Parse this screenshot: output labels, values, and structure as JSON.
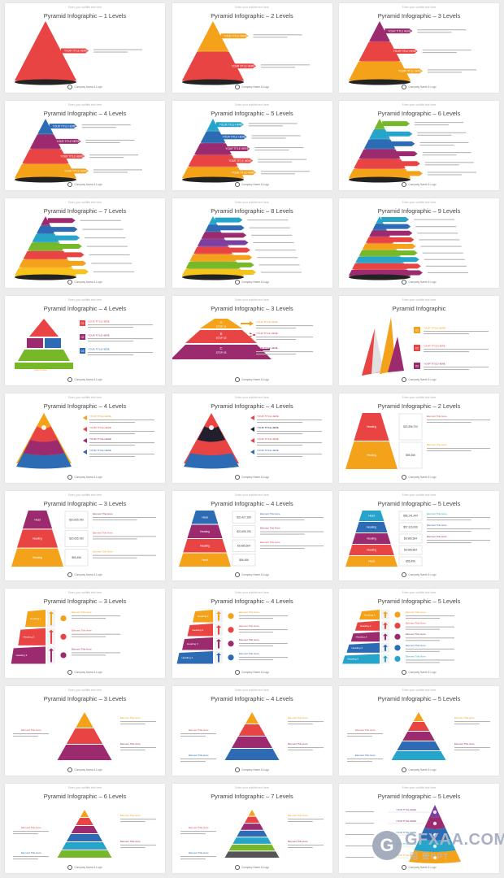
{
  "subtitle": "Enter your subtitle text here",
  "footer": "Company Name & Logo",
  "small_title": "YOUR TITLE HERE",
  "element_title": "Element Title Here",
  "body_text": "There are many variations of passages of lorem ipsum available.",
  "slides": [
    {
      "title": "Pyramid Infographic – 1 Levels",
      "type": "cone",
      "colors": [
        "#e94444"
      ]
    },
    {
      "title": "Pyramid Infographic – 2 Levels",
      "type": "cone",
      "colors": [
        "#f3a21a",
        "#e94444"
      ]
    },
    {
      "title": "Pyramid Infographic – 3 Levels",
      "type": "cone",
      "colors": [
        "#9b2a6e",
        "#e94444",
        "#f3a21a"
      ]
    },
    {
      "title": "Pyramid Infographic – 4 Levels",
      "type": "cone",
      "colors": [
        "#2d6cb5",
        "#9b2a6e",
        "#e94444",
        "#f3a21a"
      ]
    },
    {
      "title": "Pyramid Infographic – 5 Levels",
      "type": "cone",
      "colors": [
        "#27a4c9",
        "#2d6cb5",
        "#9b2a6e",
        "#e94444",
        "#f3a21a"
      ]
    },
    {
      "title": "Pyramid Infographic – 6 Levels",
      "type": "cone",
      "colors": [
        "#76b82a",
        "#27a4c9",
        "#2d6cb5",
        "#9b2a6e",
        "#e94444",
        "#f3a21a"
      ]
    },
    {
      "title": "Pyramid Infographic – 7 Levels",
      "type": "cone",
      "colors": [
        "#9b2a6e",
        "#2d6cb5",
        "#27a4c9",
        "#76b82a",
        "#e94444",
        "#f3a21a",
        "#f7c21a"
      ]
    },
    {
      "title": "Pyramid Infographic – 8 Levels",
      "type": "cone",
      "colors": [
        "#27a4c9",
        "#2d6cb5",
        "#9b2a6e",
        "#7a3fa0",
        "#e94444",
        "#f3a21a",
        "#76b82a",
        "#f7c21a"
      ]
    },
    {
      "title": "Pyramid Infographic – 9 Levels",
      "type": "cone",
      "colors": [
        "#27a4c9",
        "#2d6cb5",
        "#9b2a6e",
        "#e94444",
        "#f3a21a",
        "#76b82a",
        "#27a4c9",
        "#e94444",
        "#9b2a6e"
      ]
    },
    {
      "title": "Pyramid Infographic – 4 Levels",
      "type": "blocks",
      "colors": [
        "#e94444",
        "#9b2a6e",
        "#2d6cb5",
        "#76b82a"
      ],
      "labels": [
        "01",
        "02",
        "03"
      ],
      "extra": "Lorem Here"
    },
    {
      "title": "Pyramid Infographic – 3 Levels",
      "type": "steps",
      "colors": [
        "#f3a21a",
        "#e94444",
        "#9b2a6e"
      ],
      "labels": [
        "A",
        "STEP 01",
        "B",
        "STEP 02",
        "C",
        "STEP 03"
      ]
    },
    {
      "title": "Pyramid Infographic",
      "type": "shards",
      "colors": [
        "#f3a21a",
        "#e94444",
        "#9b2a6e"
      ],
      "labels": [
        "01",
        "02",
        "03"
      ]
    },
    {
      "title": "Pyramid Infographic – 4 Levels",
      "type": "round",
      "colors": [
        "#f3a21a",
        "#e94444",
        "#9b2a6e",
        "#2d6cb5"
      ]
    },
    {
      "title": "Pyramid Infographic – 4 Levels",
      "type": "round",
      "colors": [
        "#e94444",
        "#1f1f2e",
        "#e94444",
        "#2d6cb5"
      ]
    },
    {
      "title": "Pyramid Infographic – 2 Levels",
      "type": "value",
      "colors": [
        "#e94444",
        "#f3a21a"
      ],
      "labels": [
        "Heading",
        "Heading"
      ],
      "values": [
        "$20,556,700",
        "$55,456"
      ]
    },
    {
      "title": "Pyramid Infographic – 3 Levels",
      "type": "value",
      "colors": [
        "#9b2a6e",
        "#e94444",
        "#f3a21a"
      ],
      "labels": [
        "Head",
        "Heading",
        "Heading"
      ],
      "values": [
        "$20,655,780",
        "$20,655,780",
        "$55,456"
      ]
    },
    {
      "title": "Pyramid Infographic – 4 Levels",
      "type": "value",
      "colors": [
        "#2d6cb5",
        "#9b2a6e",
        "#e94444",
        "#f3a21a"
      ],
      "labels": [
        "Head",
        "Heading",
        "Heading",
        "Head"
      ],
      "values": [
        "$20,427,189",
        "$20,655,780",
        "$5,985,564",
        "$56,456"
      ]
    },
    {
      "title": "Pyramid Infographic – 5 Levels",
      "type": "value",
      "colors": [
        "#27a4c9",
        "#2d6cb5",
        "#9b2a6e",
        "#e94444",
        "#f3a21a"
      ],
      "labels": [
        "Head",
        "Heading",
        "Heading",
        "Heading",
        "Head"
      ],
      "values": [
        "$96,141,444",
        "$57,116,066",
        "$5,985,564",
        "$5,985,564",
        "$56,456"
      ]
    },
    {
      "title": "Pyramid Infographic – 3 Levels",
      "type": "bars",
      "colors": [
        "#f3a21a",
        "#e94444",
        "#9b2a6e"
      ],
      "labels": [
        "Heading 1",
        "Heading 2",
        "Heading 3"
      ]
    },
    {
      "title": "Pyramid Infographic – 4 Levels",
      "type": "bars",
      "colors": [
        "#f3a21a",
        "#e94444",
        "#9b2a6e",
        "#2d6cb5"
      ],
      "labels": [
        "Heading 1",
        "Heading 2",
        "Heading 3",
        "Heading 4"
      ]
    },
    {
      "title": "Pyramid Infographic – 5 Levels",
      "type": "bars",
      "colors": [
        "#f3a21a",
        "#e94444",
        "#9b2a6e",
        "#2d6cb5",
        "#27a4c9"
      ],
      "labels": [
        "Heading 1",
        "Heading 2",
        "Heading 3",
        "Heading 4",
        "Heading 5"
      ]
    },
    {
      "title": "Pyramid Infographic – 3 Levels",
      "type": "flat",
      "colors": [
        "#f3a21a",
        "#e94444",
        "#9b2a6e"
      ]
    },
    {
      "title": "Pyramid Infographic – 4 Levels",
      "type": "flat",
      "colors": [
        "#f3a21a",
        "#e94444",
        "#9b2a6e",
        "#2d6cb5"
      ]
    },
    {
      "title": "Pyramid Infographic – 5 Levels",
      "type": "flat",
      "colors": [
        "#f3a21a",
        "#e94444",
        "#9b2a6e",
        "#2d6cb5",
        "#27a4c9"
      ]
    },
    {
      "title": "Pyramid Infographic – 6 Levels",
      "type": "flat",
      "colors": [
        "#f3a21a",
        "#e94444",
        "#9b2a6e",
        "#2d6cb5",
        "#27a4c9",
        "#76b82a"
      ]
    },
    {
      "title": "Pyramid Infographic – 7 Levels",
      "type": "flat",
      "colors": [
        "#f3a21a",
        "#e94444",
        "#9b2a6e",
        "#2d6cb5",
        "#27a4c9",
        "#76b82a",
        "#555555"
      ]
    },
    {
      "title": "Pyramid Infographic – 5 Levels",
      "type": "dome",
      "colors": [
        "#7a3fa0",
        "#9b2a6e",
        "#2d6cb5",
        "#27a4c9",
        "#f3a21a"
      ]
    }
  ],
  "watermark": {
    "brand": "GFXAA.COM",
    "sub": "图 兽PPT"
  }
}
